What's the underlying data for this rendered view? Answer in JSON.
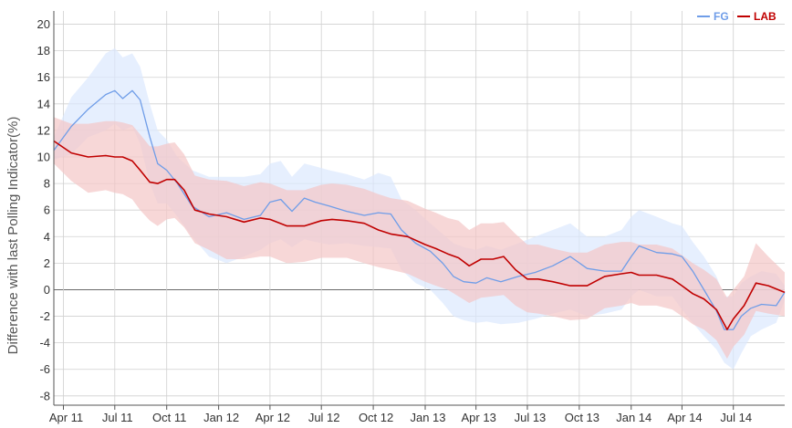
{
  "chart_data": {
    "type": "line",
    "title": "",
    "xlabel": "",
    "ylabel": "Difference with last Polling Indicator(%)",
    "ylim": [
      -8.7,
      21
    ],
    "y_ticks": [
      20,
      18,
      16,
      14,
      12,
      10,
      8,
      6,
      4,
      2,
      0,
      -2,
      -4,
      -6,
      -8
    ],
    "y_tick_labels": [
      "20",
      "18",
      "16",
      "14",
      "12",
      "10",
      "8",
      "6",
      "4",
      "2",
      "0",
      "-2",
      "-4",
      "-6",
      "-8"
    ],
    "x_ticks": [
      "2011-04-01",
      "2011-07-01",
      "2011-10-01",
      "2012-01-01",
      "2012-04-01",
      "2012-07-01",
      "2012-10-01",
      "2013-01-01",
      "2013-04-01",
      "2013-07-01",
      "2013-10-01",
      "2014-01-01",
      "2014-04-01",
      "2014-07-01"
    ],
    "x_tick_labels": [
      "Apr 11",
      "Jul 11",
      "Oct 11",
      "Jan 12",
      "Apr 12",
      "Jul 12",
      "Oct 12",
      "Jan 13",
      "Apr 13",
      "Jul 13",
      "Oct 13",
      "Jan 14",
      "Apr 14",
      "Jul 14"
    ],
    "x_range": [
      "2011-03-15",
      "2014-09-30"
    ],
    "grid": true,
    "legend_position": "top-right",
    "series": [
      {
        "name": "FG",
        "color": "#6f9de8",
        "band_color": "#dce8fd",
        "x": [
          "2011-03-15",
          "2011-04-15",
          "2011-05-15",
          "2011-06-15",
          "2011-07-01",
          "2011-07-15",
          "2011-08-01",
          "2011-08-15",
          "2011-09-01",
          "2011-09-15",
          "2011-10-01",
          "2011-10-20",
          "2011-11-15",
          "2011-12-15",
          "2012-01-15",
          "2012-02-15",
          "2012-03-15",
          "2012-04-01",
          "2012-04-20",
          "2012-05-10",
          "2012-06-01",
          "2012-06-20",
          "2012-07-15",
          "2012-08-15",
          "2012-09-15",
          "2012-10-10",
          "2012-11-01",
          "2012-11-20",
          "2012-12-15",
          "2013-01-10",
          "2013-02-01",
          "2013-02-20",
          "2013-03-10",
          "2013-04-01",
          "2013-04-20",
          "2013-05-15",
          "2013-06-15",
          "2013-07-15",
          "2013-08-15",
          "2013-09-15",
          "2013-10-15",
          "2013-11-15",
          "2013-12-15",
          "2014-01-01",
          "2014-01-15",
          "2014-02-15",
          "2014-03-15",
          "2014-04-01",
          "2014-04-20",
          "2014-05-10",
          "2014-06-01",
          "2014-06-15",
          "2014-07-01",
          "2014-07-15",
          "2014-08-01",
          "2014-08-20",
          "2014-09-15",
          "2014-09-30"
        ],
        "values": [
          10.5,
          12.3,
          13.6,
          14.7,
          15.0,
          14.4,
          15.0,
          14.3,
          11.5,
          9.5,
          9.0,
          8.0,
          6.3,
          5.5,
          5.8,
          5.3,
          5.6,
          6.6,
          6.8,
          5.9,
          6.9,
          6.6,
          6.3,
          5.9,
          5.6,
          5.8,
          5.7,
          4.5,
          3.5,
          2.9,
          2.0,
          1.0,
          0.6,
          0.5,
          0.9,
          0.6,
          1.0,
          1.3,
          1.8,
          2.5,
          1.6,
          1.4,
          1.4,
          2.5,
          3.3,
          2.8,
          2.7,
          2.5,
          1.4,
          0.0,
          -1.6,
          -3.0,
          -3.0,
          -2.0,
          -1.4,
          -1.1,
          -1.2,
          -0.2
        ],
        "band_lower": [
          9.8,
          10.2,
          11.5,
          12.0,
          12.5,
          12.0,
          12.3,
          11.0,
          8.0,
          6.5,
          6.5,
          5.5,
          4.0,
          2.5,
          2.0,
          2.5,
          3.0,
          3.5,
          3.8,
          3.2,
          3.8,
          3.6,
          3.4,
          3.5,
          3.3,
          3.2,
          3.1,
          1.5,
          0.5,
          0.0,
          -1.0,
          -2.0,
          -2.3,
          -2.5,
          -2.4,
          -2.6,
          -2.5,
          -2.2,
          -1.8,
          -1.5,
          -2.0,
          -1.8,
          -1.5,
          -0.5,
          0.0,
          -0.5,
          -0.5,
          -1.5,
          -2.5,
          -3.5,
          -4.5,
          -5.5,
          -6.0,
          -4.8,
          -3.5,
          -3.0,
          -2.5,
          -0.8
        ],
        "band_upper": [
          11.5,
          14.5,
          16.0,
          17.8,
          18.2,
          17.5,
          17.8,
          16.8,
          14.0,
          12.0,
          11.3,
          10.0,
          9.0,
          8.5,
          8.5,
          8.5,
          8.7,
          9.5,
          9.7,
          8.5,
          9.5,
          9.3,
          9.0,
          8.7,
          8.3,
          8.8,
          8.5,
          6.8,
          6.0,
          5.0,
          4.2,
          3.5,
          3.2,
          3.0,
          3.3,
          3.0,
          3.5,
          4.0,
          4.5,
          5.0,
          4.0,
          4.0,
          4.5,
          5.5,
          6.0,
          5.5,
          5.0,
          4.8,
          3.6,
          2.5,
          1.0,
          -0.5,
          -0.5,
          0.5,
          1.0,
          1.4,
          1.2,
          0.3
        ]
      },
      {
        "name": "LAB",
        "color": "#c00000",
        "band_color": "#f4c6c6",
        "x": [
          "2011-03-15",
          "2011-04-15",
          "2011-05-15",
          "2011-06-15",
          "2011-07-01",
          "2011-07-15",
          "2011-08-01",
          "2011-08-15",
          "2011-09-01",
          "2011-09-15",
          "2011-10-01",
          "2011-10-15",
          "2011-11-01",
          "2011-11-20",
          "2011-12-15",
          "2012-01-15",
          "2012-02-15",
          "2012-03-15",
          "2012-04-01",
          "2012-05-01",
          "2012-06-01",
          "2012-07-01",
          "2012-07-20",
          "2012-08-15",
          "2012-09-15",
          "2012-10-10",
          "2012-11-01",
          "2012-12-01",
          "2013-01-01",
          "2013-01-20",
          "2013-02-10",
          "2013-03-01",
          "2013-03-20",
          "2013-04-10",
          "2013-05-01",
          "2013-05-20",
          "2013-06-10",
          "2013-07-01",
          "2013-07-20",
          "2013-08-15",
          "2013-09-15",
          "2013-10-15",
          "2013-11-15",
          "2013-12-15",
          "2014-01-01",
          "2014-01-15",
          "2014-02-15",
          "2014-03-15",
          "2014-04-01",
          "2014-04-20",
          "2014-05-10",
          "2014-06-01",
          "2014-06-20",
          "2014-07-01",
          "2014-07-20",
          "2014-08-10",
          "2014-09-01",
          "2014-09-30"
        ],
        "values": [
          11.2,
          10.3,
          10.0,
          10.1,
          10.0,
          10.0,
          9.7,
          9.0,
          8.1,
          8.0,
          8.3,
          8.3,
          7.5,
          6.0,
          5.7,
          5.5,
          5.1,
          5.4,
          5.3,
          4.8,
          4.8,
          5.2,
          5.3,
          5.2,
          5.0,
          4.5,
          4.2,
          4.0,
          3.4,
          3.1,
          2.7,
          2.4,
          1.8,
          2.3,
          2.3,
          2.5,
          1.5,
          0.8,
          0.8,
          0.6,
          0.3,
          0.3,
          1.0,
          1.2,
          1.3,
          1.1,
          1.1,
          0.8,
          0.3,
          -0.3,
          -0.7,
          -1.5,
          -3.0,
          -2.2,
          -1.2,
          0.5,
          0.3,
          -0.2
        ],
        "band_lower": [
          9.5,
          8.2,
          7.3,
          7.5,
          7.3,
          7.2,
          6.8,
          6.0,
          5.2,
          4.8,
          5.3,
          5.4,
          4.7,
          3.5,
          3.0,
          2.3,
          2.3,
          2.5,
          2.5,
          2.0,
          2.1,
          2.4,
          2.4,
          2.4,
          2.0,
          1.7,
          1.5,
          1.2,
          0.6,
          0.3,
          0.0,
          -0.5,
          -1.0,
          -0.6,
          -0.5,
          -0.4,
          -1.2,
          -1.7,
          -1.8,
          -2.0,
          -2.3,
          -2.2,
          -1.4,
          -1.2,
          -1.0,
          -1.2,
          -1.2,
          -1.5,
          -2.0,
          -2.6,
          -3.0,
          -3.8,
          -5.2,
          -4.3,
          -3.4,
          -1.6,
          -1.8,
          -2.0
        ],
        "band_upper": [
          13.0,
          12.5,
          12.5,
          12.7,
          12.7,
          12.6,
          12.4,
          11.7,
          10.8,
          10.8,
          11.0,
          11.1,
          10.2,
          8.6,
          8.3,
          8.2,
          7.8,
          8.1,
          8.0,
          7.5,
          7.5,
          7.9,
          8.0,
          7.9,
          7.6,
          7.2,
          6.9,
          6.7,
          6.1,
          5.8,
          5.4,
          5.2,
          4.5,
          5.0,
          5.0,
          5.1,
          4.2,
          3.4,
          3.4,
          3.1,
          2.8,
          2.8,
          3.4,
          3.6,
          3.6,
          3.4,
          3.4,
          3.1,
          2.6,
          2.0,
          1.5,
          0.8,
          -0.6,
          0.0,
          1.0,
          3.5,
          2.5,
          1.3
        ]
      }
    ]
  }
}
